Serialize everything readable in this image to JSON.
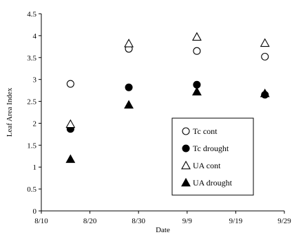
{
  "chart_data": {
    "type": "scatter",
    "xlabel": "Date",
    "ylabel": "Leaf Area Index",
    "xlim": [
      "8/10",
      "9/29"
    ],
    "ylim": [
      0,
      4.5
    ],
    "x_ticks": [
      "8/10",
      "8/20",
      "8/30",
      "9/9",
      "9/19",
      "9/29"
    ],
    "y_ticks": [
      "0",
      "0.5",
      "1",
      "1.5",
      "2",
      "2.5",
      "3",
      "3.5",
      "4",
      "4.5"
    ],
    "grid": false,
    "legend_position": "lower-right",
    "series": [
      {
        "name": "Tc cont",
        "marker": "circle-open",
        "x": [
          "8/16",
          "8/28",
          "9/11",
          "9/25"
        ],
        "y": [
          2.9,
          3.7,
          3.65,
          3.52
        ]
      },
      {
        "name": "Tc drought",
        "marker": "circle-filled",
        "x": [
          "8/16",
          "8/28",
          "9/11",
          "9/25"
        ],
        "y": [
          1.87,
          2.82,
          2.88,
          2.65
        ]
      },
      {
        "name": "UA cont",
        "marker": "triangle-open",
        "x": [
          "8/16",
          "8/28",
          "9/11",
          "9/25"
        ],
        "y": [
          1.98,
          3.82,
          3.97,
          3.83
        ]
      },
      {
        "name": "UA drought",
        "marker": "triangle-filled",
        "x": [
          "8/16",
          "8/28",
          "9/11",
          "9/25"
        ],
        "y": [
          1.18,
          2.42,
          2.72,
          2.68
        ]
      }
    ]
  }
}
